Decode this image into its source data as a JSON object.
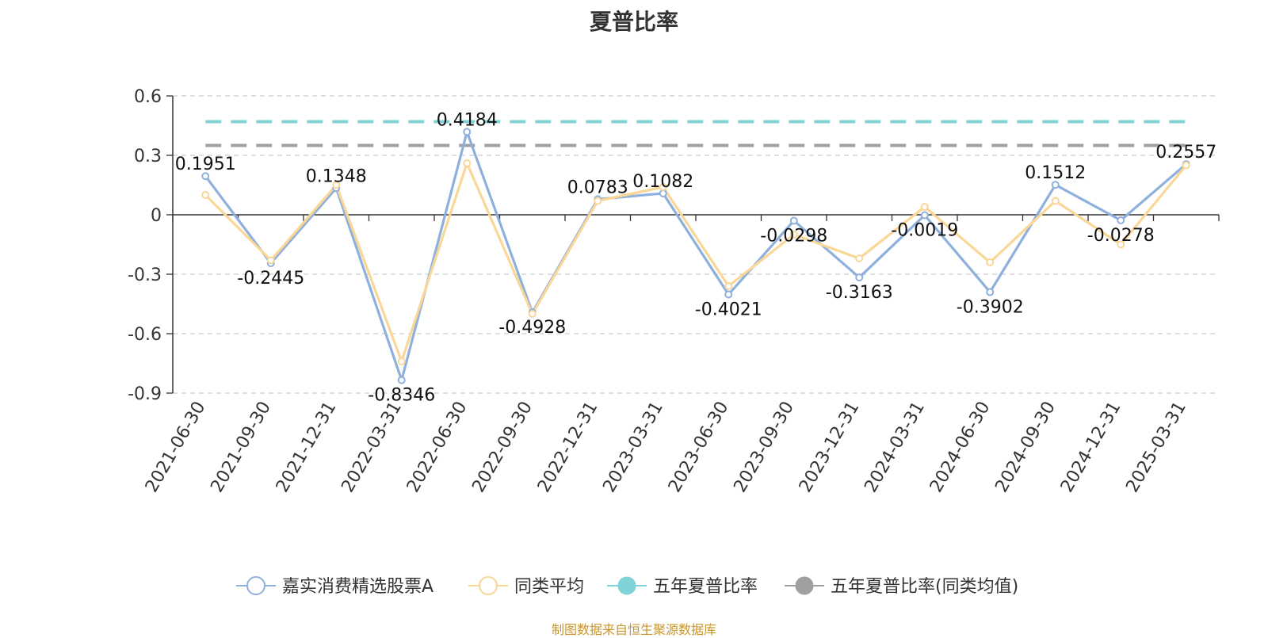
{
  "title": "夏普比率",
  "source": "制图数据来自恒生聚源数据库",
  "chart_data": {
    "type": "line",
    "categories": [
      "2021-06-30",
      "2021-09-30",
      "2021-12-31",
      "2022-03-31",
      "2022-06-30",
      "2022-09-30",
      "2022-12-31",
      "2023-03-31",
      "2023-06-30",
      "2023-09-30",
      "2023-12-31",
      "2024-03-31",
      "2024-06-30",
      "2024-09-30",
      "2024-12-31",
      "2025-03-31"
    ],
    "ylim": [
      -0.9,
      0.6
    ],
    "yticks": [
      0.6,
      0.3,
      0,
      -0.3,
      -0.6,
      -0.9
    ],
    "ytick_labels": [
      "0.6",
      "0.3",
      "0",
      "-0.3",
      "-0.6",
      "-0.9"
    ],
    "grid": true,
    "legend_position": "bottom",
    "series": [
      {
        "name": "嘉实消费精选股票A",
        "color": "#8eb0dc",
        "values": [
          0.1951,
          -0.2445,
          0.1348,
          -0.8346,
          0.4184,
          -0.4928,
          0.0783,
          0.1082,
          -0.4021,
          -0.0298,
          -0.3163,
          -0.0019,
          -0.3902,
          0.1512,
          -0.0278,
          0.2557
        ],
        "labels": [
          "0.1951",
          "-0.2445",
          "0.1348",
          "-0.8346",
          "0.4184",
          "-0.4928",
          "0.0783",
          "0.1082",
          "-0.4021",
          "-0.0298",
          "-0.3163",
          "-0.0019",
          "-0.3902",
          "0.1512",
          "-0.0278",
          "0.2557"
        ]
      },
      {
        "name": "同类平均",
        "color": "#fad797",
        "values": [
          0.1,
          -0.23,
          0.15,
          -0.74,
          0.26,
          -0.5,
          0.07,
          0.14,
          -0.36,
          -0.1,
          -0.22,
          0.04,
          -0.24,
          0.07,
          -0.15,
          0.25
        ]
      },
      {
        "name": "五年夏普比率",
        "color": "#7fd2d6",
        "type": "hline",
        "value": 0.47
      },
      {
        "name": "五年夏普比率(同类均值)",
        "color": "#a0a0a0",
        "type": "hline",
        "value": 0.35
      }
    ]
  }
}
